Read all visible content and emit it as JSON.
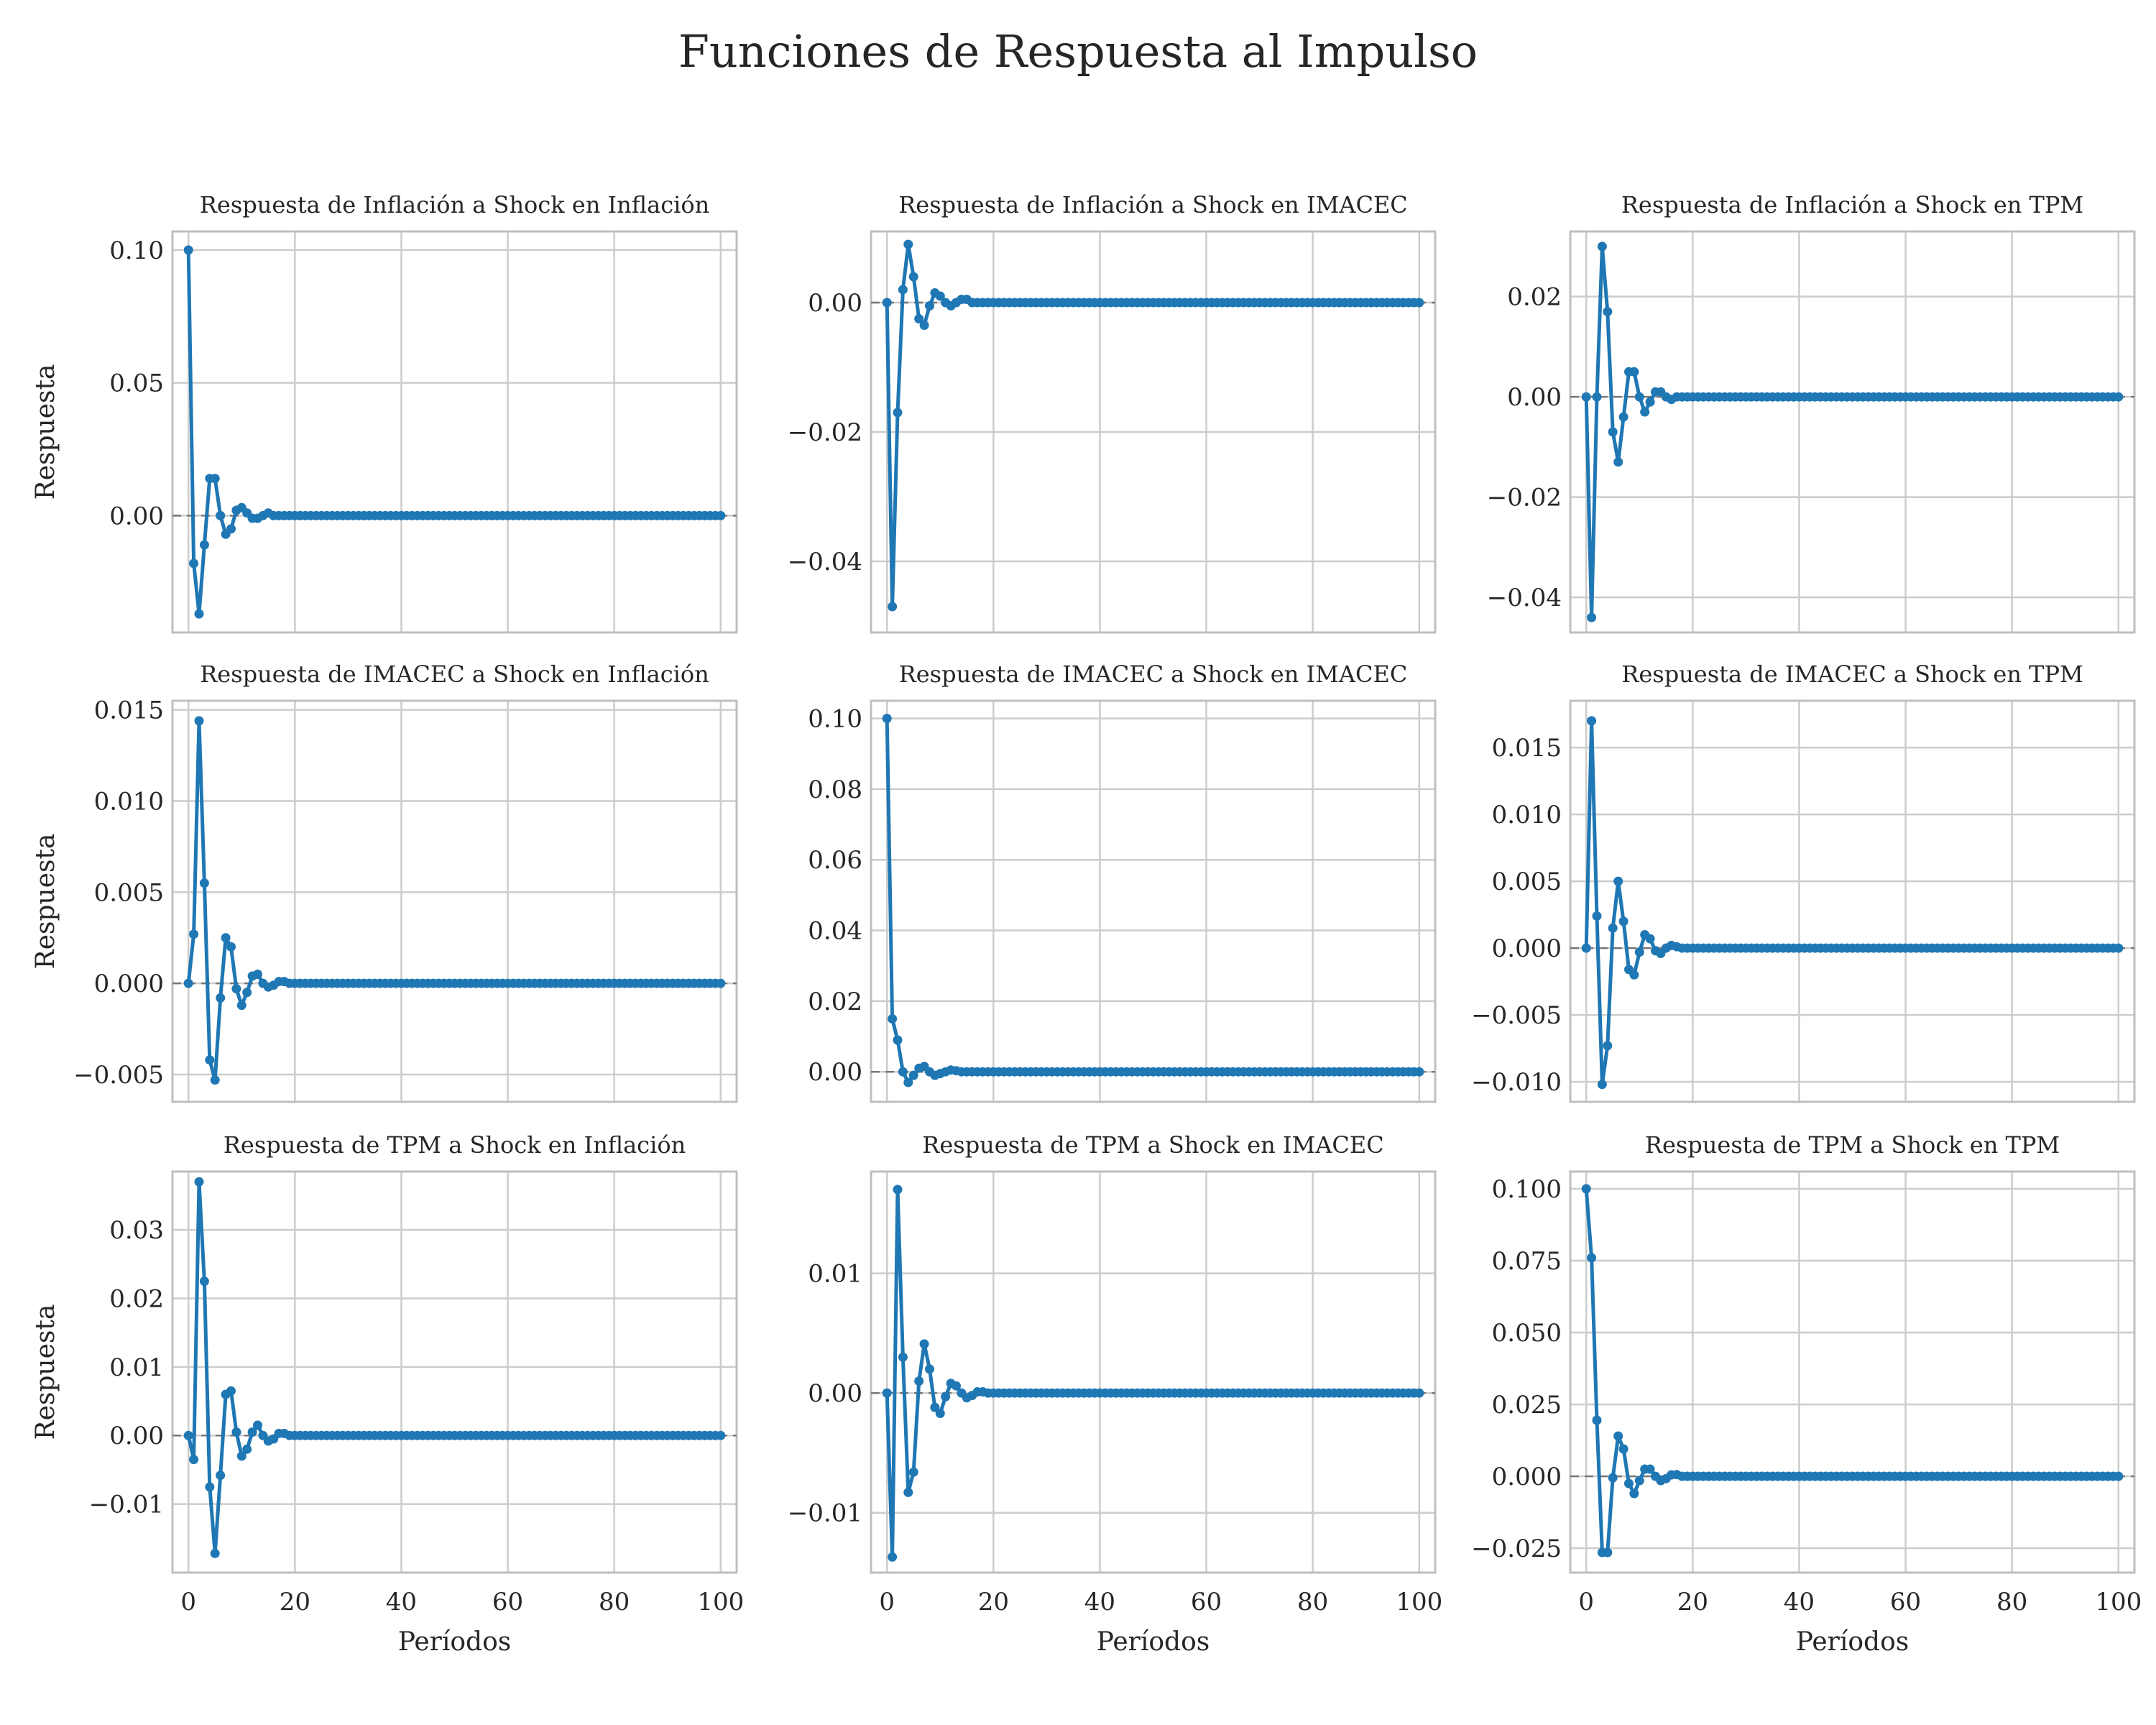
{
  "figure": {
    "suptitle": "Funciones de Respuesta al Impulso",
    "line_color": "#1f77b4",
    "zero_line_color": "#777777",
    "grid_color": "#cccccc"
  },
  "chart_data": [
    {
      "type": "line",
      "title": "Respuesta de Inflación a Shock en Inflación",
      "xlabel": "",
      "ylabel": "Respuesta",
      "xlim": [
        -3,
        103
      ],
      "ylim": [
        -0.044,
        0.107
      ],
      "xticks": [
        0,
        20,
        40,
        60,
        80,
        100
      ],
      "yticks": [
        0.1,
        0.05,
        0.0
      ],
      "ytick_labels": [
        "0.10",
        "0.05",
        "0.00"
      ],
      "show_xtick_labels": false,
      "x_max": 100,
      "tail_value": 0,
      "values": [
        0.1,
        -0.018,
        -0.037,
        -0.011,
        0.014,
        0.014,
        0.0,
        -0.007,
        -0.005,
        0.002,
        0.003,
        0.001,
        -0.001,
        -0.001,
        0.0,
        0.001,
        0.0,
        0.0,
        0.0,
        0.0
      ]
    },
    {
      "type": "line",
      "title": "Respuesta de Inflación a Shock en IMACEC",
      "xlabel": "",
      "ylabel": "",
      "xlim": [
        -3,
        103
      ],
      "ylim": [
        -0.051,
        0.011
      ],
      "xticks": [
        0,
        20,
        40,
        60,
        80,
        100
      ],
      "yticks": [
        0.0,
        -0.02,
        -0.04
      ],
      "ytick_labels": [
        "0.00",
        "−0.02",
        "−0.04"
      ],
      "show_xtick_labels": false,
      "x_max": 100,
      "tail_value": 0,
      "values": [
        0.0,
        -0.047,
        -0.017,
        0.002,
        0.009,
        0.004,
        -0.0025,
        -0.0035,
        -0.0005,
        0.0015,
        0.001,
        0.0,
        -0.0005,
        0.0,
        0.0005,
        0.0005,
        0.0,
        0.0,
        0.0,
        0.0
      ]
    },
    {
      "type": "line",
      "title": "Respuesta de Inflación a Shock en TPM",
      "xlabel": "",
      "ylabel": "",
      "xlim": [
        -3,
        103
      ],
      "ylim": [
        -0.047,
        0.033
      ],
      "xticks": [
        0,
        20,
        40,
        60,
        80,
        100
      ],
      "yticks": [
        0.02,
        0.0,
        -0.02,
        -0.04
      ],
      "ytick_labels": [
        "0.02",
        "0.00",
        "−0.02",
        "−0.04"
      ],
      "show_xtick_labels": false,
      "x_max": 100,
      "tail_value": 0,
      "values": [
        0.0,
        -0.044,
        0.0,
        0.03,
        0.017,
        -0.007,
        -0.013,
        -0.004,
        0.005,
        0.005,
        0.0,
        -0.003,
        -0.001,
        0.001,
        0.001,
        0.0,
        -0.0005,
        0.0,
        0.0,
        0.0
      ]
    },
    {
      "type": "line",
      "title": "Respuesta de IMACEC a Shock en Inflación",
      "xlabel": "",
      "ylabel": "Respuesta",
      "xlim": [
        -3,
        103
      ],
      "ylim": [
        -0.0065,
        0.0155
      ],
      "xticks": [
        0,
        20,
        40,
        60,
        80,
        100
      ],
      "yticks": [
        0.015,
        0.01,
        0.005,
        0.0,
        -0.005
      ],
      "ytick_labels": [
        "0.015",
        "0.010",
        "0.005",
        "0.000",
        "−0.005"
      ],
      "show_xtick_labels": false,
      "x_max": 100,
      "tail_value": 0,
      "values": [
        0.0,
        0.0027,
        0.0144,
        0.0055,
        -0.0042,
        -0.0053,
        -0.0008,
        0.0025,
        0.002,
        -0.0003,
        -0.0012,
        -0.0005,
        0.0004,
        0.0005,
        0.0,
        -0.0002,
        -0.0001,
        0.0001,
        0.0001,
        0.0
      ]
    },
    {
      "type": "line",
      "title": "Respuesta de IMACEC a Shock en IMACEC",
      "xlabel": "",
      "ylabel": "",
      "xlim": [
        -3,
        103
      ],
      "ylim": [
        -0.0085,
        0.105
      ],
      "xticks": [
        0,
        20,
        40,
        60,
        80,
        100
      ],
      "yticks": [
        0.1,
        0.08,
        0.06,
        0.04,
        0.02,
        0.0
      ],
      "ytick_labels": [
        "0.10",
        "0.08",
        "0.06",
        "0.04",
        "0.02",
        "0.00"
      ],
      "show_xtick_labels": false,
      "x_max": 100,
      "tail_value": 0,
      "values": [
        0.1,
        0.015,
        0.009,
        0.0,
        -0.003,
        -0.001,
        0.001,
        0.0015,
        0.0,
        -0.001,
        -0.0005,
        0.0,
        0.0005,
        0.0003,
        0.0,
        0.0,
        0.0,
        0.0,
        0.0,
        0.0
      ]
    },
    {
      "type": "line",
      "title": "Respuesta de IMACEC a Shock en TPM",
      "xlabel": "",
      "ylabel": "",
      "xlim": [
        -3,
        103
      ],
      "ylim": [
        -0.0115,
        0.0185
      ],
      "xticks": [
        0,
        20,
        40,
        60,
        80,
        100
      ],
      "yticks": [
        0.015,
        0.01,
        0.005,
        0.0,
        -0.005,
        -0.01
      ],
      "ytick_labels": [
        "0.015",
        "0.010",
        "0.005",
        "0.000",
        "−0.005",
        "−0.010"
      ],
      "show_xtick_labels": false,
      "x_max": 100,
      "tail_value": 0,
      "values": [
        0.0,
        0.017,
        0.0024,
        -0.0102,
        -0.0073,
        0.0015,
        0.005,
        0.002,
        -0.0016,
        -0.002,
        -0.0003,
        0.001,
        0.0007,
        -0.0002,
        -0.0004,
        0.0,
        0.0002,
        0.0001,
        0.0,
        0.0
      ]
    },
    {
      "type": "line",
      "title": "Respuesta de TPM a Shock en Inflación",
      "xlabel": "Períodos",
      "ylabel": "Respuesta",
      "xlim": [
        -3,
        103
      ],
      "ylim": [
        -0.02,
        0.0385
      ],
      "xticks": [
        0,
        20,
        40,
        60,
        80,
        100
      ],
      "yticks": [
        0.03,
        0.02,
        0.01,
        0.0,
        -0.01
      ],
      "ytick_labels": [
        "0.03",
        "0.02",
        "0.01",
        "0.00",
        "−0.01"
      ],
      "show_xtick_labels": true,
      "x_max": 100,
      "tail_value": 0,
      "values": [
        0.0,
        -0.0035,
        0.037,
        0.0225,
        -0.0075,
        -0.0172,
        -0.0058,
        0.006,
        0.0065,
        0.0005,
        -0.003,
        -0.002,
        0.0005,
        0.0015,
        0.0,
        -0.0008,
        -0.0005,
        0.0003,
        0.0003,
        0.0
      ]
    },
    {
      "type": "line",
      "title": "Respuesta de TPM a Shock en IMACEC",
      "xlabel": "Períodos",
      "ylabel": "",
      "xlim": [
        -3,
        103
      ],
      "ylim": [
        -0.015,
        0.0185
      ],
      "xticks": [
        0,
        20,
        40,
        60,
        80,
        100
      ],
      "yticks": [
        0.01,
        0.0,
        -0.01
      ],
      "ytick_labels": [
        "0.01",
        "0.00",
        "−0.01"
      ],
      "show_xtick_labels": true,
      "x_max": 100,
      "tail_value": 0,
      "values": [
        0.0,
        -0.0137,
        0.017,
        0.003,
        -0.0083,
        -0.0066,
        0.001,
        0.0041,
        0.002,
        -0.0012,
        -0.0017,
        -0.0003,
        0.0008,
        0.0006,
        0.0,
        -0.0004,
        -0.0002,
        0.0001,
        0.0001,
        0.0
      ]
    },
    {
      "type": "line",
      "title": "Respuesta de TPM a Shock en TPM",
      "xlabel": "Períodos",
      "ylabel": "",
      "xlim": [
        -3,
        103
      ],
      "ylim": [
        -0.0335,
        0.106
      ],
      "xticks": [
        0,
        20,
        40,
        60,
        80,
        100
      ],
      "yticks": [
        0.1,
        0.075,
        0.05,
        0.025,
        0.0,
        -0.025
      ],
      "ytick_labels": [
        "0.100",
        "0.075",
        "0.050",
        "0.025",
        "0.000",
        "−0.025"
      ],
      "show_xtick_labels": true,
      "x_max": 100,
      "tail_value": 0,
      "values": [
        0.1,
        0.076,
        0.0195,
        -0.0265,
        -0.0265,
        -0.0005,
        0.014,
        0.0095,
        -0.0025,
        -0.006,
        -0.0015,
        0.0025,
        0.0025,
        0.0,
        -0.0015,
        -0.0008,
        0.0005,
        0.0006,
        0.0,
        0.0
      ]
    }
  ]
}
